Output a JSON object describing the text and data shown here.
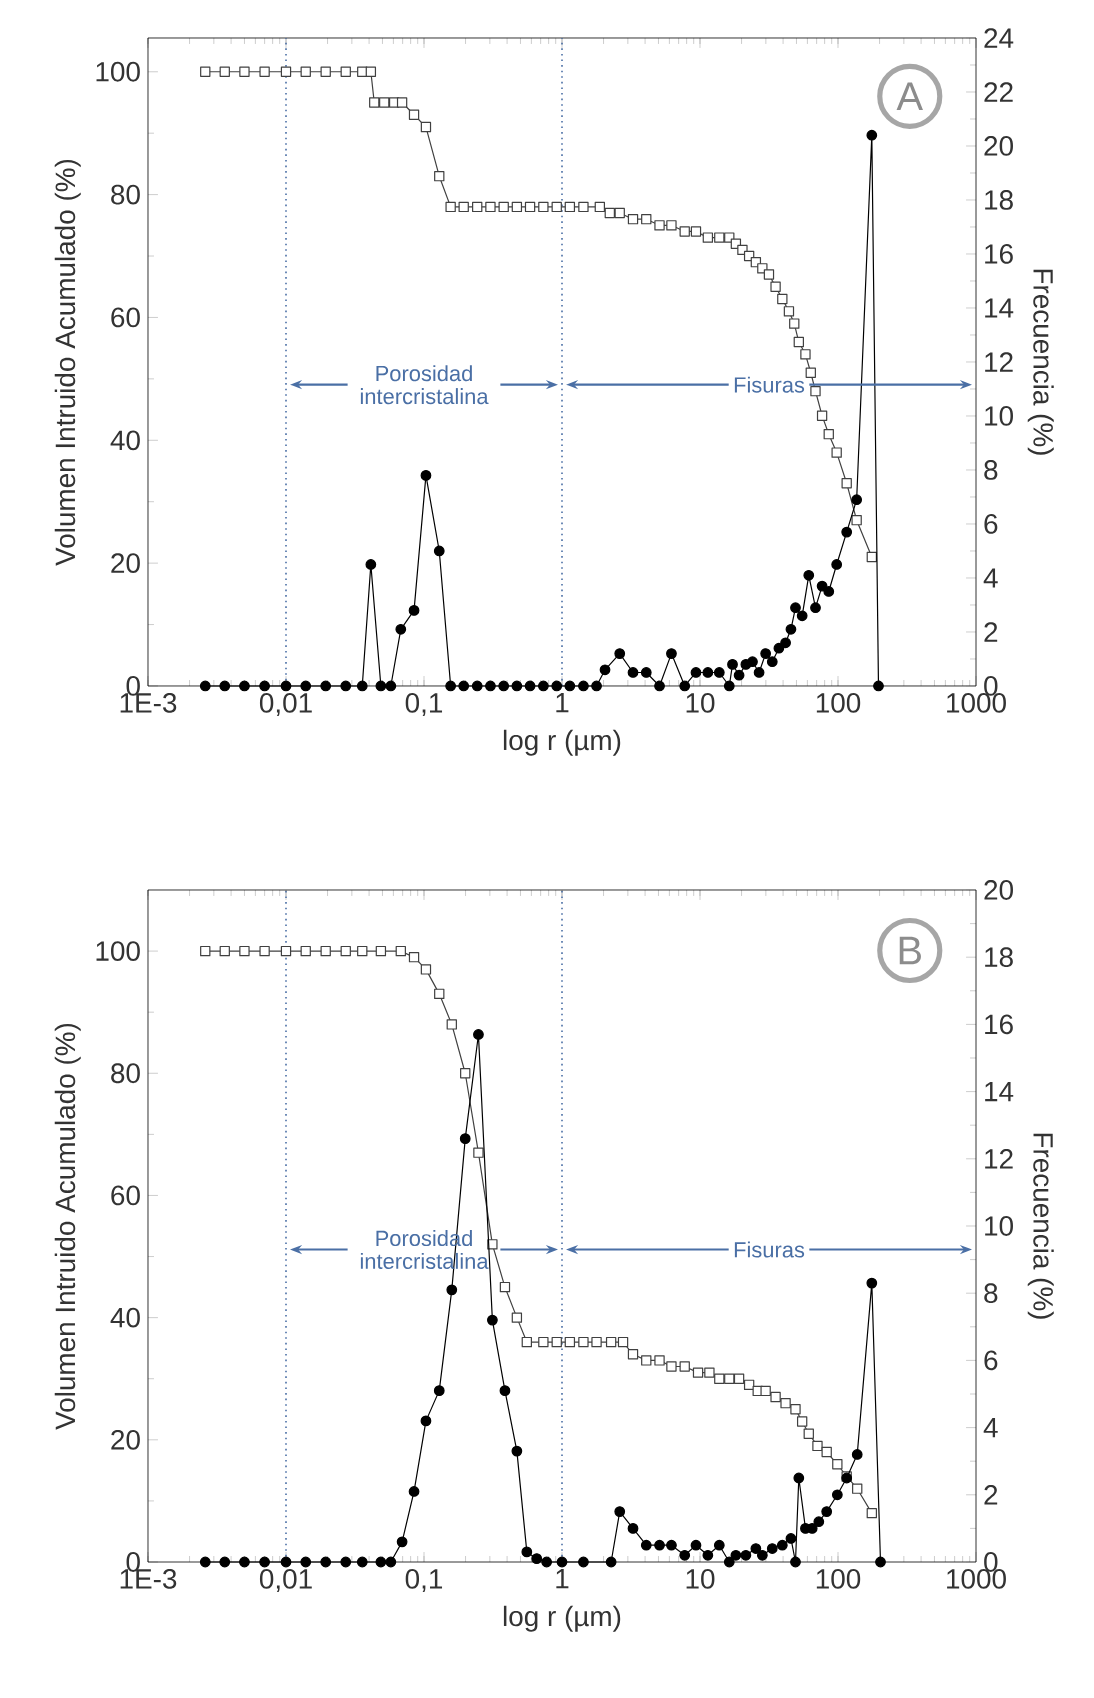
{
  "chart_data": [
    {
      "type": "line",
      "xlabel": "log r (µm)",
      "ylabel": "Volumen Intruido Acumulado (%)",
      "y2label": "Frecuencia (%)",
      "log": "x",
      "xlim": [
        0.001,
        1000
      ],
      "xticks": [
        {
          "value": 0.001,
          "label": "1E-3"
        },
        {
          "value": 0.01,
          "label": "0,01"
        },
        {
          "value": 0.1,
          "label": "0,1"
        },
        1,
        10,
        100,
        1000
      ],
      "ylim": [
        0,
        105.5
      ],
      "yticks": [
        0,
        20,
        40,
        60,
        80,
        100
      ],
      "y2lim": [
        0,
        24
      ],
      "y2ticks": [
        0,
        2,
        4,
        6,
        8,
        10,
        12,
        14,
        16,
        18,
        20,
        22,
        24
      ],
      "ref_lines": [
        {
          "axis": "x",
          "value": 0.01,
          "color": "#4a6fa5",
          "line_style": "dotted"
        },
        {
          "axis": "x",
          "value": 1,
          "color": "#4a6fa5",
          "line_style": "dotted"
        }
      ],
      "annotations": [
        "A",
        "Porosidad intercristalina",
        "Fisuras"
      ],
      "series": [
        {
          "color": "#404040",
          "marker": "square",
          "x": [
            0.0026,
            0.0036,
            0.005,
            0.007,
            0.01,
            0.0139,
            0.0194,
            0.0271,
            0.0357,
            0.0412,
            0.0436,
            0.0515,
            0.0608,
            0.0694,
            0.0847,
            0.1033,
            0.129,
            0.156,
            0.194,
            0.243,
            0.303,
            0.378,
            0.471,
            0.587,
            0.733,
            0.916,
            1.14,
            1.43,
            1.88,
            2.22,
            2.62,
            3.27,
            4.08,
            5.09,
            6.21,
            7.75,
            9.35,
            11.4,
            13.8,
            16.3,
            18.2,
            20.3,
            22.7,
            25.4,
            28.3,
            31.6,
            35.3,
            39.5,
            44.1,
            48.2,
            52.0,
            58.1,
            63.5,
            68.7,
            76.7,
            85.7,
            97.8,
            115.6,
            136.5,
            175.8
          ],
          "values": [
            100,
            100,
            100,
            100,
            100,
            100,
            100,
            100,
            100,
            100,
            95,
            95,
            95,
            95,
            93,
            91,
            83,
            78,
            78,
            78,
            78,
            78,
            78,
            78,
            78,
            78,
            78,
            78,
            78,
            77,
            77,
            76,
            76,
            75,
            75,
            74,
            74,
            73,
            73,
            73,
            72,
            71,
            70,
            69,
            68,
            67,
            65,
            63,
            61,
            59,
            56,
            54,
            51,
            48,
            44,
            41,
            38,
            33,
            27,
            21
          ]
        },
        {
          "color": "#000000",
          "marker": "circle",
          "axis": "y2",
          "x": [
            0.0026,
            0.0036,
            0.005,
            0.007,
            0.01,
            0.0139,
            0.0194,
            0.0271,
            0.0357,
            0.0412,
            0.0487,
            0.0575,
            0.0679,
            0.0847,
            0.1033,
            0.129,
            0.156,
            0.194,
            0.243,
            0.303,
            0.378,
            0.471,
            0.587,
            0.733,
            0.916,
            1.14,
            1.43,
            1.78,
            2.05,
            2.62,
            3.27,
            4.08,
            5.09,
            6.21,
            7.75,
            9.35,
            11.4,
            13.8,
            16.3,
            17.2,
            19.2,
            21.5,
            24.0,
            26.8,
            29.9,
            33.4,
            37.3,
            41.7,
            45.6,
            49.2,
            55.0,
            61.4,
            68.7,
            76.7,
            85.7,
            97.8,
            115.6,
            136.5,
            175.8,
            196.5
          ],
          "values": [
            0,
            0,
            0,
            0,
            0,
            0,
            0,
            0,
            0,
            4.5,
            0,
            0,
            2.1,
            2.8,
            7.8,
            5.0,
            0,
            0,
            0,
            0,
            0,
            0,
            0,
            0,
            0,
            0,
            0,
            0,
            0.6,
            1.2,
            0.5,
            0.5,
            0,
            1.2,
            0,
            0.5,
            0.5,
            0.5,
            0,
            0.8,
            0.4,
            0.8,
            0.9,
            0.5,
            1.2,
            0.9,
            1.4,
            1.6,
            2.1,
            2.9,
            2.6,
            4.1,
            2.9,
            3.7,
            3.5,
            4.5,
            5.7,
            6.9,
            20.4,
            0
          ]
        }
      ]
    },
    {
      "type": "line",
      "xlabel": "log r (µm)",
      "ylabel": "Volumen Intruido Acumulado (%)",
      "y2label": "Frecuencia (%)",
      "log": "x",
      "xlim": [
        0.001,
        1000
      ],
      "xticks": [
        {
          "value": 0.001,
          "label": "1E-3"
        },
        {
          "value": 0.01,
          "label": "0,01"
        },
        {
          "value": 0.1,
          "label": "0,1"
        },
        1,
        10,
        100,
        1000
      ],
      "ylim": [
        0,
        110
      ],
      "yticks": [
        0,
        20,
        40,
        60,
        80,
        100
      ],
      "y2lim": [
        0,
        20
      ],
      "y2ticks": [
        0,
        2,
        4,
        6,
        8,
        10,
        12,
        14,
        16,
        18,
        20
      ],
      "ref_lines": [
        {
          "axis": "x",
          "value": 0.01,
          "color": "#4a6fa5",
          "line_style": "dotted"
        },
        {
          "axis": "x",
          "value": 1,
          "color": "#4a6fa5",
          "line_style": "dotted"
        }
      ],
      "annotations": [
        "B",
        "Porosidad intercristalina",
        "Fisuras"
      ],
      "series": [
        {
          "color": "#404040",
          "marker": "square",
          "x": [
            0.0026,
            0.0036,
            0.005,
            0.007,
            0.01,
            0.0139,
            0.0194,
            0.0271,
            0.0357,
            0.0487,
            0.0679,
            0.0847,
            0.1033,
            0.129,
            0.159,
            0.199,
            0.248,
            0.313,
            0.386,
            0.471,
            0.556,
            0.733,
            0.916,
            1.14,
            1.43,
            1.78,
            2.27,
            2.77,
            3.27,
            4.08,
            5.09,
            6.21,
            7.75,
            9.68,
            11.7,
            13.8,
            16.3,
            19.2,
            22.7,
            26.2,
            29.9,
            35.3,
            41.7,
            49.2,
            55.0,
            61.4,
            71.0,
            82.8,
            98.9,
            115.6,
            137.8,
            175.8
          ],
          "values": [
            100,
            100,
            100,
            100,
            100,
            100,
            100,
            100,
            100,
            100,
            100,
            99,
            97,
            93,
            88,
            80,
            67,
            52,
            45,
            40,
            36,
            36,
            36,
            36,
            36,
            36,
            36,
            36,
            34,
            33,
            33,
            32,
            32,
            31,
            31,
            30,
            30,
            30,
            29,
            28,
            28,
            27,
            26,
            25,
            23,
            21,
            19,
            18,
            16,
            14,
            12,
            8
          ]
        },
        {
          "color": "#000000",
          "marker": "circle",
          "axis": "y2",
          "x": [
            0.0026,
            0.0036,
            0.005,
            0.007,
            0.01,
            0.0139,
            0.0194,
            0.0271,
            0.0357,
            0.0487,
            0.0575,
            0.0694,
            0.0847,
            0.1033,
            0.129,
            0.159,
            0.199,
            0.248,
            0.313,
            0.386,
            0.471,
            0.556,
            0.656,
            0.774,
            1.0,
            1.43,
            2.27,
            2.62,
            3.27,
            4.08,
            5.09,
            6.21,
            7.75,
            9.35,
            11.4,
            13.8,
            16.3,
            18.2,
            21.5,
            25.4,
            28.3,
            33.4,
            39.5,
            45.6,
            49.2,
            52.0,
            58.1,
            65.0,
            72.6,
            82.8,
            98.9,
            115.6,
            137.8,
            175.8,
            203.2
          ],
          "values": [
            0,
            0,
            0,
            0,
            0,
            0,
            0,
            0,
            0,
            0,
            0,
            0.6,
            2.1,
            4.2,
            5.1,
            8.1,
            12.6,
            15.7,
            7.2,
            5.1,
            3.3,
            0.3,
            0.1,
            0,
            0,
            0,
            0,
            1.5,
            1.0,
            0.5,
            0.5,
            0.5,
            0.2,
            0.5,
            0.2,
            0.5,
            0,
            0.2,
            0.2,
            0.4,
            0.2,
            0.4,
            0.5,
            0.7,
            0,
            2.5,
            1.0,
            1.0,
            1.2,
            1.5,
            2.0,
            2.5,
            3.2,
            8.3,
            0
          ]
        }
      ]
    }
  ]
}
